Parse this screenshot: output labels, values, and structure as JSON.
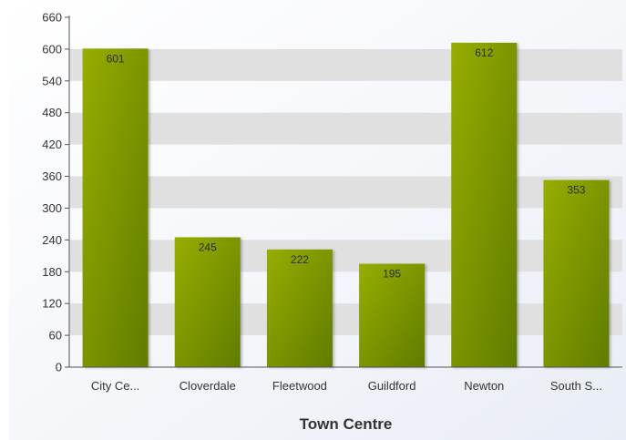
{
  "chart_data": {
    "type": "bar",
    "title": "",
    "xlabel": "Town Centre",
    "ylabel": "",
    "categories": [
      "City Ce...",
      "Cloverdale",
      "Fleetwood",
      "Guildford",
      "Newton",
      "South S..."
    ],
    "values": [
      601,
      245,
      222,
      195,
      612,
      353
    ],
    "value_labels": [
      "601",
      "245",
      "222",
      "195",
      "612",
      "353"
    ],
    "ylim": [
      0,
      660
    ],
    "yticks": [
      0,
      60,
      120,
      180,
      240,
      300,
      360,
      420,
      480,
      540,
      600,
      660
    ],
    "ytick_labels": [
      "0",
      "60",
      "120",
      "180",
      "240",
      "300",
      "360",
      "420",
      "480",
      "540",
      "600",
      "660"
    ],
    "grid": "alternating horizontal bands",
    "legend": "none",
    "colors": {
      "bar_light": "#97ad06",
      "bar_dark": "#607c00",
      "band": "#e0e0e0",
      "axis": "#555555",
      "text": "#333333"
    }
  }
}
